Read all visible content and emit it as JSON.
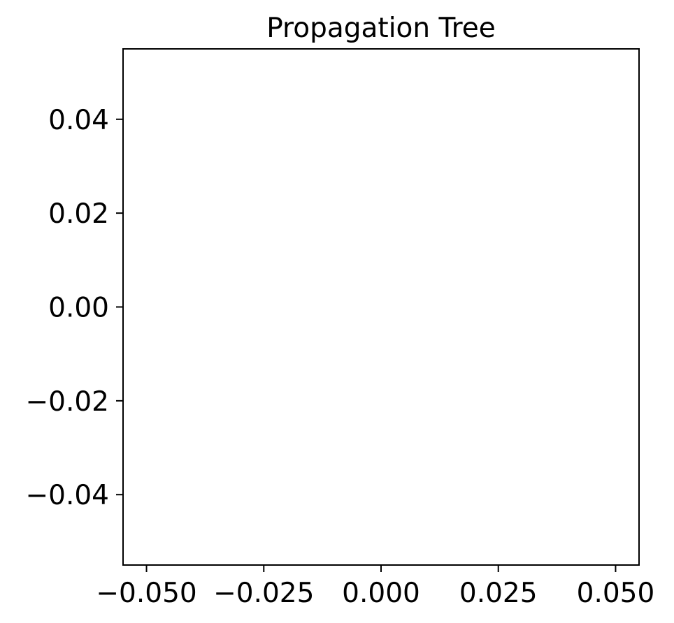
{
  "chart_data": {
    "type": "scatter",
    "title": "Propagation Tree",
    "xlabel": "",
    "ylabel": "",
    "xlim": [
      -0.055,
      0.055
    ],
    "ylim": [
      -0.055,
      0.055
    ],
    "x_ticks": [
      {
        "value": -0.05,
        "label": "−0.050"
      },
      {
        "value": -0.025,
        "label": "−0.025"
      },
      {
        "value": 0.0,
        "label": "0.000"
      },
      {
        "value": 0.025,
        "label": "0.025"
      },
      {
        "value": 0.05,
        "label": "0.050"
      }
    ],
    "y_ticks": [
      {
        "value": 0.04,
        "label": "0.04"
      },
      {
        "value": 0.02,
        "label": "0.02"
      },
      {
        "value": 0.0,
        "label": "0.00"
      },
      {
        "value": -0.02,
        "label": "−0.02"
      },
      {
        "value": -0.04,
        "label": "−0.04"
      }
    ],
    "series": [],
    "grid": false,
    "legend": "none"
  }
}
